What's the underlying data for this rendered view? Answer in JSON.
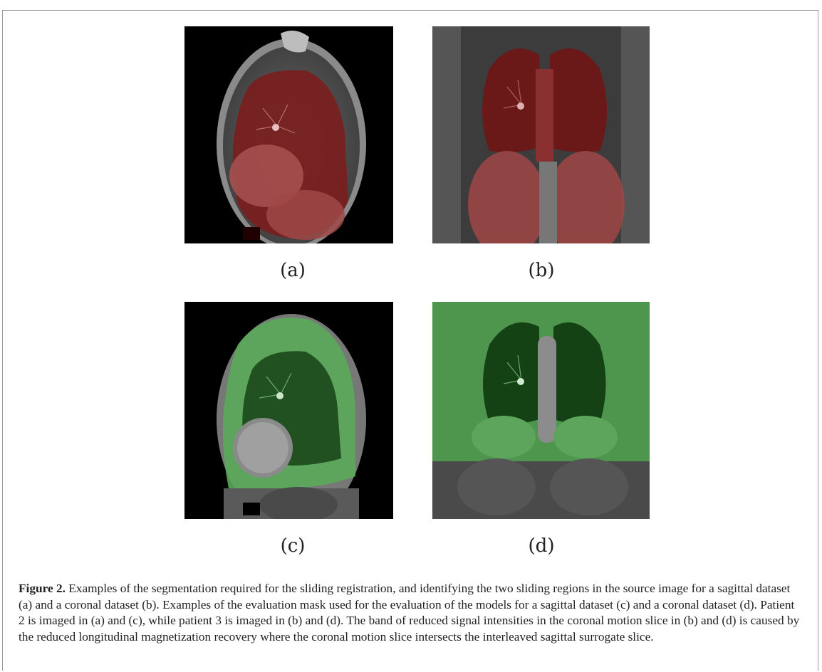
{
  "panels": [
    {
      "label": "(a)",
      "image": "sagittal-mri-with-red-sliding-region-segmentation"
    },
    {
      "label": "(b)",
      "image": "coronal-mri-with-red-sliding-region-segmentation"
    },
    {
      "label": "(c)",
      "image": "sagittal-mri-with-green-evaluation-mask"
    },
    {
      "label": "(d)",
      "image": "coronal-mri-with-green-evaluation-mask"
    }
  ],
  "caption": {
    "figure_label": "Figure 2.",
    "text": "Examples of the segmentation required for the sliding registration, and identifying the two sliding regions in the source image for a sagittal dataset (a) and a coronal dataset (b). Examples of the evaluation mask used for the evaluation of the models for a sagittal dataset (c) and a coronal dataset (d). Patient 2 is imaged in (a) and (c), while patient 3 is imaged in (b) and (d). The band of reduced signal intensities in the coronal motion slice in (b) and (d) is caused by the reduced longitudinal magnetization recovery where the coronal motion slice intersects the interleaved sagittal surrogate slice."
  },
  "colors": {
    "segmentation_red": "#8b2020",
    "evaluation_green": "#5aa85a",
    "background": "#000000"
  }
}
